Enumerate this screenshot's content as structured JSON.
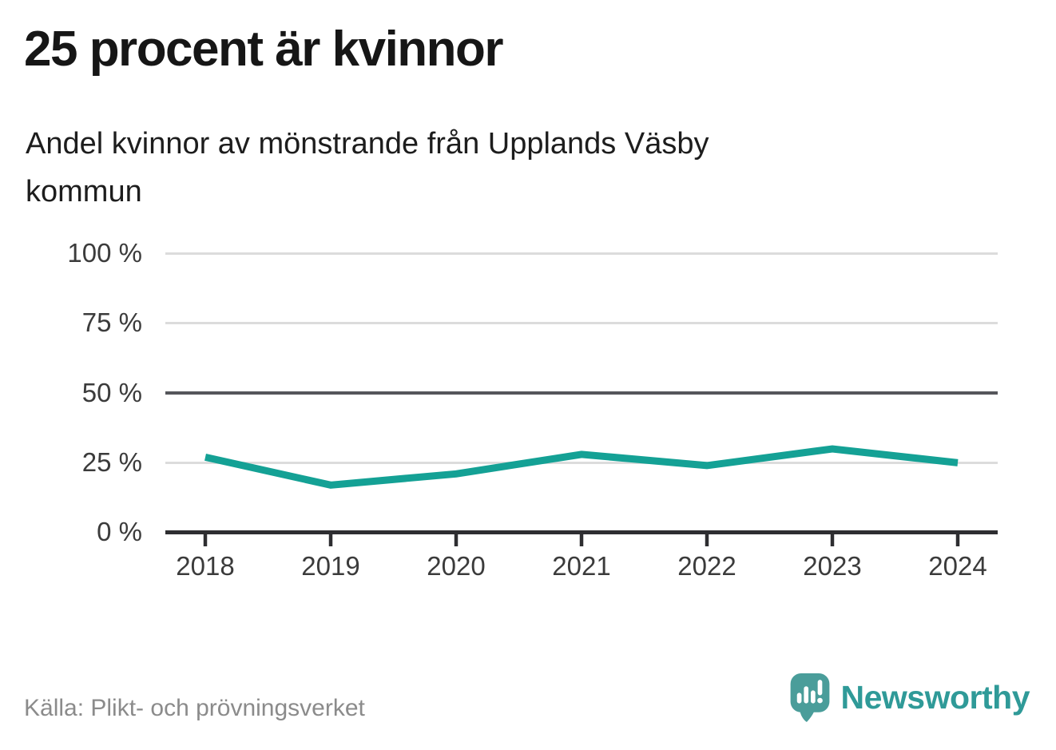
{
  "header": {
    "title": "25 procent är kvinnor",
    "subtitle": "Andel kvinnor av mönstrande från Upplands Väsby kommun",
    "subtitle_line1": "Andel kvinnor av mönstrande från Upplands Väsby",
    "subtitle_line2": "kommun"
  },
  "chart_data": {
    "type": "line",
    "title": "25 procent är kvinnor",
    "subtitle": "Andel kvinnor av mönstrande från Upplands Väsby kommun",
    "categories": [
      "2018",
      "2019",
      "2020",
      "2021",
      "2022",
      "2023",
      "2024"
    ],
    "values": [
      27,
      17,
      21,
      28,
      24,
      30,
      25
    ],
    "unit": "%",
    "ylim": [
      0,
      100
    ],
    "yticks": [
      0,
      25,
      50,
      75,
      100
    ],
    "ytick_labels": [
      "0 %",
      "25 %",
      "50 %",
      "75 %",
      "100 %"
    ],
    "grid": true,
    "legend": "none",
    "line_color": "#14a195",
    "emphasized_gridline_value": 50
  },
  "footer": {
    "source": "Källa: Plikt- och prövningsverket",
    "brand": "Newsworthy",
    "brand_color": "#2f9a98",
    "logo_icon": "speech-bubble-bar-chart-exclamation"
  }
}
